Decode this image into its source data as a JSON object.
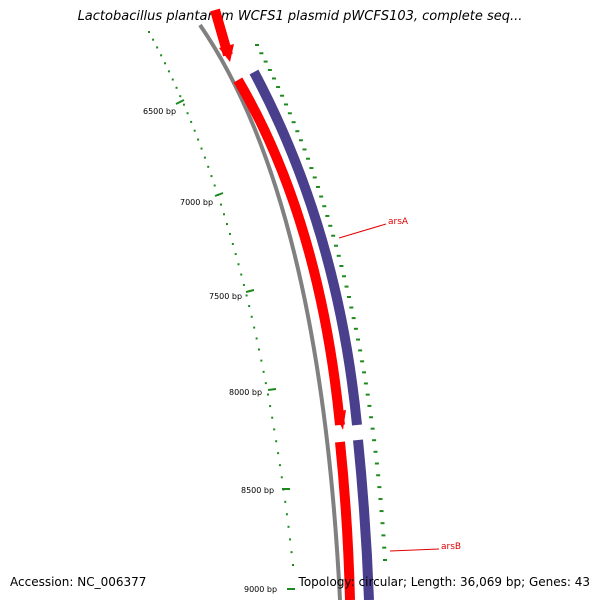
{
  "title": "Lactobacillus plantarum WCFS1 plasmid pWCFS103, complete seq...",
  "footer": {
    "accession": "Accession: NC_006377",
    "topology": "Topology: circular; Length: 36,069 bp; Genes: 43"
  },
  "colors": {
    "backbone": "#808080",
    "forward_genes": "#ff0000",
    "reverse_genes": "#4a3f8c",
    "ticks": "#1e8a1e",
    "gene_labels": "#e00000"
  },
  "ticks": [
    {
      "label": "6500 bp"
    },
    {
      "label": "7000 bp"
    },
    {
      "label": "7500 bp"
    },
    {
      "label": "8000 bp"
    },
    {
      "label": "8500 bp"
    },
    {
      "label": "9000 bp"
    }
  ],
  "genes": [
    {
      "name": "arsA"
    },
    {
      "name": "arsB"
    }
  ]
}
